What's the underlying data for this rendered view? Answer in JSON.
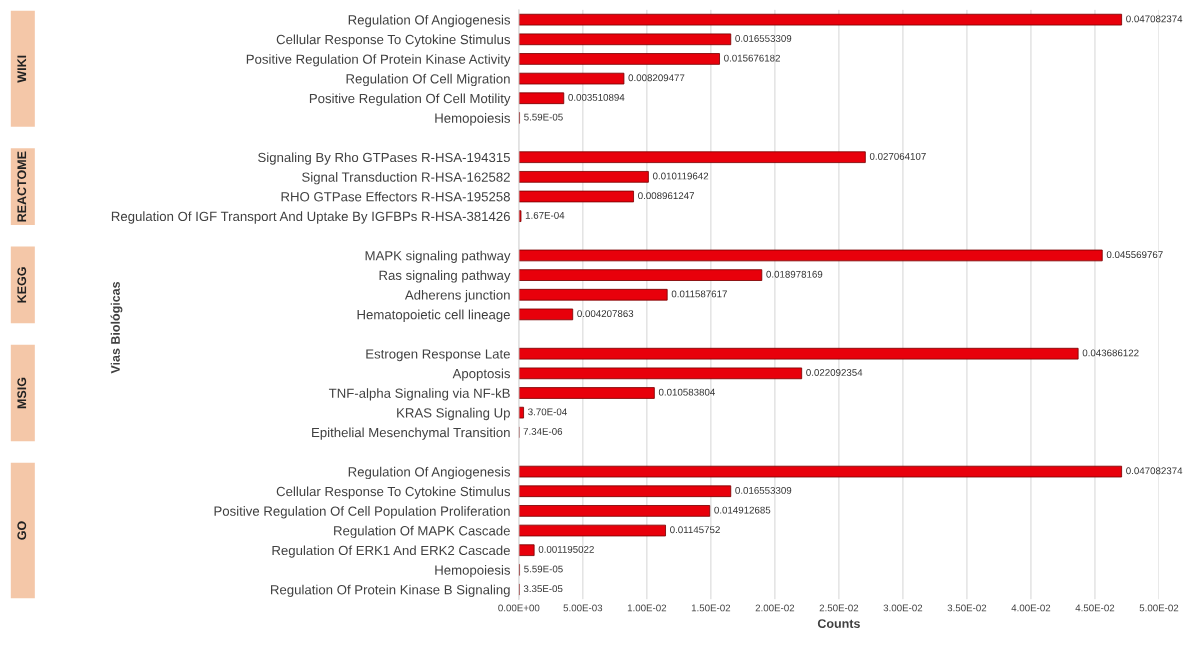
{
  "chart_data": {
    "type": "bar",
    "orientation": "horizontal",
    "xlabel": "Counts",
    "ylabel": "Vias Biológicas",
    "categories": [
      "Regulation Of Angiogenesis",
      "Cellular Response To Cytokine Stimulus",
      "Positive Regulation Of Protein Kinase Activity",
      "Regulation Of Cell Migration",
      "Positive Regulation Of Cell Motility",
      "Hemopoiesis",
      null,
      "Signaling By Rho GTPases R-HSA-194315",
      "Signal Transduction R-HSA-162582",
      "RHO GTPase Effectors R-HSA-195258",
      "Regulation Of IGF Transport And Uptake By IGFBPs R-HSA-381426",
      null,
      "MAPK signaling pathway",
      "Ras signaling pathway",
      "Adherens junction",
      "Hematopoietic cell lineage",
      null,
      "Estrogen Response Late",
      "Apoptosis",
      "TNF-alpha Signaling via NF-kB",
      "KRAS Signaling Up",
      "Epithelial Mesenchymal Transition",
      null,
      "Regulation Of Angiogenesis",
      "Cellular Response To Cytokine Stimulus",
      "Positive Regulation Of Cell Population Proliferation",
      "Regulation Of MAPK Cascade",
      "Regulation Of ERK1 And ERK2 Cascade",
      "Hemopoiesis",
      "Regulation Of Protein Kinase B Signaling"
    ],
    "values": [
      0.047082374,
      0.016553309,
      0.015676182,
      0.008209477,
      0.003510894,
      5.59e-05,
      null,
      0.027064107,
      0.010119642,
      0.008961247,
      0.000167,
      null,
      0.045569767,
      0.018978169,
      0.011587617,
      0.004207863,
      null,
      0.043686122,
      0.022092354,
      0.010583804,
      0.00037,
      7.34e-06,
      null,
      0.047082374,
      0.016553309,
      0.014912685,
      0.01145752,
      0.001195022,
      5.59e-05,
      3.35e-05
    ],
    "value_labels": [
      "0.047082374",
      "0.016553309",
      "0.015676182",
      "0.008209477",
      "0.003510894",
      "5.59E-05",
      null,
      "0.027064107",
      "0.010119642",
      "0.008961247",
      "1.67E-04",
      null,
      "0.045569767",
      "0.018978169",
      "0.011587617",
      "0.004207863",
      null,
      "0.043686122",
      "0.022092354",
      "0.010583804",
      "3.70E-04",
      "7.34E-06",
      null,
      "0.047082374",
      "0.016553309",
      "0.014912685",
      "0.01145752",
      "0.001195022",
      "5.59E-05",
      "3.35E-05"
    ],
    "color": "#e8000b",
    "xlim": [
      0,
      0.05
    ],
    "xticks": [
      {
        "value": 0,
        "label": "0.00E+00"
      },
      {
        "value": 0.005,
        "label": "5.00E-03"
      },
      {
        "value": 0.01,
        "label": "1.00E-02"
      },
      {
        "value": 0.015,
        "label": "1.50E-02"
      },
      {
        "value": 0.02,
        "label": "2.00E-02"
      },
      {
        "value": 0.025,
        "label": "2.50E-02"
      },
      {
        "value": 0.03,
        "label": "3.00E-02"
      },
      {
        "value": 0.035,
        "label": "3.50E-02"
      },
      {
        "value": 0.04,
        "label": "4.00E-02"
      },
      {
        "value": 0.045,
        "label": "4.50E-02"
      },
      {
        "value": 0.05,
        "label": "5.00E-02"
      }
    ],
    "grid": "x",
    "legend": false,
    "annotations": [
      "WIKI",
      "REACTOME",
      "KEGG",
      "MSIG",
      "GO"
    ]
  }
}
